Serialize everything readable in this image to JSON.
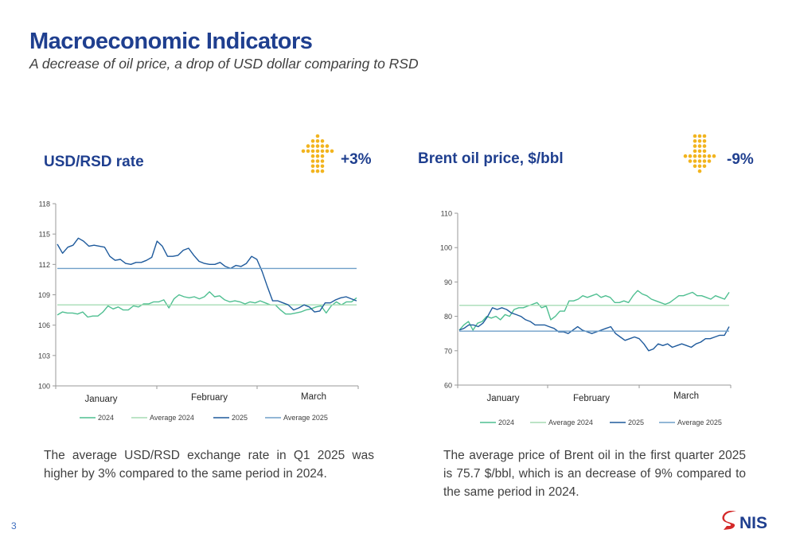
{
  "header": {
    "title": "Macroeconomic Indicators",
    "subtitle": "A decrease of oil price, a drop of USD dollar comparing to RSD"
  },
  "page_number": "3",
  "logo": {
    "text": "NIS"
  },
  "colors": {
    "title_blue": "#1f3f8f",
    "arrow_gold": "#f2b41e",
    "series_2024": "#4fbf91",
    "average_2024": "#a6dcb4",
    "series_2025": "#1e5a9c",
    "average_2025": "#6f9fc8",
    "axis": "#9a9a9a"
  },
  "panels": [
    {
      "title": "USD/RSD rate",
      "change": "+3%",
      "arrow": "up-arrow-icon",
      "description": "The average USD/RSD exchange rate in Q1 2025 was higher by 3% compared to the same period in 2024."
    },
    {
      "title": "Brent oil price, $/bbl",
      "change": "-9%",
      "arrow": "down-arrow-icon",
      "description": "The average price of Brent oil in the first quarter 2025 is 75.7 $/bbl, which is an decrease of 9% compared to the same period in 2024."
    }
  ],
  "chart_data": [
    {
      "type": "line",
      "xlabels": [
        "January",
        "February",
        "March"
      ],
      "ylim": [
        100,
        118
      ],
      "yticks": [
        100,
        103,
        106,
        109,
        112,
        115,
        118
      ],
      "grid": false,
      "legend_position": "bottom",
      "series": [
        {
          "name": "2024",
          "values": [
            107.0,
            107.3,
            107.2,
            107.2,
            107.1,
            107.3,
            106.8,
            106.9,
            106.9,
            107.3,
            107.9,
            107.6,
            107.8,
            107.5,
            107.5,
            107.9,
            107.8,
            108.1,
            108.1,
            108.3,
            108.3,
            108.5,
            107.7,
            108.6,
            109.0,
            108.8,
            108.7,
            108.8,
            108.6,
            108.8,
            109.3,
            108.8,
            108.9,
            108.5,
            108.3,
            108.4,
            108.3,
            108.1,
            108.3,
            108.2,
            108.4,
            108.2,
            108.0,
            108.0,
            107.5,
            107.1,
            107.1,
            107.2,
            107.3,
            107.5,
            107.6,
            107.8,
            107.9,
            107.2,
            107.9,
            108.3,
            108.0,
            108.3,
            108.3,
            108.7
          ]
        },
        {
          "name": "Average 2024",
          "values": [
            108.0,
            108.0
          ]
        },
        {
          "name": "2025",
          "values": [
            114.0,
            113.1,
            113.7,
            113.9,
            114.6,
            114.3,
            113.8,
            113.9,
            113.8,
            113.7,
            112.8,
            112.4,
            112.5,
            112.1,
            112.0,
            112.2,
            112.2,
            112.4,
            112.7,
            114.3,
            113.8,
            112.8,
            112.8,
            112.9,
            113.4,
            113.6,
            112.9,
            112.3,
            112.1,
            112.0,
            112.0,
            112.2,
            111.8,
            111.6,
            111.9,
            111.8,
            112.1,
            112.8,
            112.5,
            111.3,
            109.8,
            108.4,
            108.4,
            108.2,
            108.0,
            107.5,
            107.7,
            108.0,
            107.8,
            107.3,
            107.4,
            108.2,
            108.2,
            108.5,
            108.7,
            108.8,
            108.6,
            108.4
          ]
        },
        {
          "name": "Average 2025",
          "values": [
            111.6,
            111.6
          ]
        }
      ]
    },
    {
      "type": "line",
      "xlabels": [
        "January",
        "February",
        "March"
      ],
      "ylim": [
        60,
        110
      ],
      "yticks": [
        60,
        70,
        80,
        90,
        100,
        110
      ],
      "grid": false,
      "legend_position": "bottom",
      "series": [
        {
          "name": "2024",
          "values": [
            76.0,
            77.5,
            78.5,
            76.0,
            78.0,
            78.5,
            80.0,
            79.5,
            80.0,
            79.0,
            80.5,
            80.0,
            82.0,
            82.5,
            82.5,
            83.0,
            83.5,
            84.0,
            82.5,
            83.0,
            79.0,
            80.0,
            81.5,
            81.5,
            84.5,
            84.5,
            85.0,
            86.0,
            85.5,
            86.0,
            86.5,
            85.5,
            86.0,
            85.5,
            84.0,
            84.0,
            84.5,
            84.0,
            86.0,
            87.5,
            86.5,
            86.0,
            85.0,
            84.5,
            84.0,
            83.5,
            84.0,
            85.0,
            86.0,
            86.0,
            86.5,
            87.0,
            86.0,
            86.0,
            85.5,
            85.0,
            86.0,
            85.5,
            85.0,
            87.0
          ]
        },
        {
          "name": "Average 2024",
          "values": [
            83.2,
            83.2
          ]
        },
        {
          "name": "2025",
          "values": [
            76.0,
            76.5,
            77.5,
            77.5,
            77.0,
            78.0,
            80.0,
            82.5,
            82.0,
            82.5,
            82.0,
            81.0,
            80.5,
            80.0,
            79.0,
            78.5,
            77.5,
            77.5,
            77.5,
            77.0,
            76.5,
            75.5,
            75.5,
            75.0,
            76.0,
            77.0,
            76.0,
            75.5,
            75.0,
            75.5,
            76.0,
            76.5,
            77.0,
            75.0,
            74.0,
            73.0,
            73.5,
            74.0,
            73.5,
            72.0,
            70.0,
            70.5,
            72.0,
            71.5,
            72.0,
            71.0,
            71.5,
            72.0,
            71.5,
            71.0,
            72.0,
            72.5,
            73.5,
            73.5,
            74.0,
            74.5,
            74.5,
            77.0
          ]
        },
        {
          "name": "Average 2025",
          "values": [
            75.7,
            75.7
          ]
        }
      ]
    }
  ]
}
